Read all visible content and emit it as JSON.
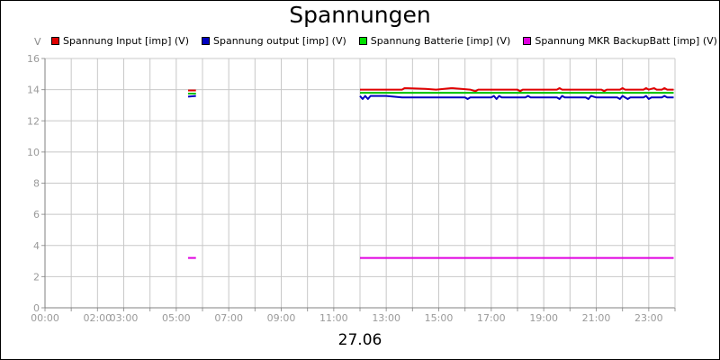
{
  "chart_data": {
    "type": "line",
    "title": "Spannungen",
    "ylabel": "V",
    "xlabel": "27.06",
    "ylim": [
      0,
      16
    ],
    "xlim": [
      0,
      24
    ],
    "grid": true,
    "legend_position": "top",
    "y_ticks": [
      0,
      2,
      4,
      6,
      8,
      10,
      12,
      14,
      16
    ],
    "x_ticks": [
      {
        "label": "00:00",
        "hour": 0
      },
      {
        "label": "02:00",
        "hour": 2
      },
      {
        "label": "03:00",
        "hour": 3
      },
      {
        "label": "05:00",
        "hour": 5
      },
      {
        "label": "07:00",
        "hour": 7
      },
      {
        "label": "09:00",
        "hour": 9
      },
      {
        "label": "11:00",
        "hour": 11
      },
      {
        "label": "13:00",
        "hour": 13
      },
      {
        "label": "15:00",
        "hour": 15
      },
      {
        "label": "17:00",
        "hour": 17
      },
      {
        "label": "19:00",
        "hour": 19
      },
      {
        "label": "21:00",
        "hour": 21
      },
      {
        "label": "23:00",
        "hour": 23
      }
    ],
    "series": [
      {
        "name": "Spannung Input [imp] (V)",
        "color": "#e00000",
        "segments": [
          [
            [
              5.45,
              13.95
            ],
            [
              5.75,
              13.95
            ]
          ],
          [
            [
              12.0,
              14.0
            ],
            [
              13.6,
              14.0
            ],
            [
              13.7,
              14.1
            ],
            [
              14.5,
              14.05
            ],
            [
              14.9,
              14.0
            ],
            [
              15.5,
              14.1
            ],
            [
              16.2,
              14.0
            ],
            [
              16.4,
              13.9
            ],
            [
              16.5,
              14.0
            ],
            [
              18.0,
              14.0
            ],
            [
              18.1,
              13.9
            ],
            [
              18.2,
              14.0
            ],
            [
              19.5,
              14.0
            ],
            [
              19.6,
              14.1
            ],
            [
              19.7,
              14.0
            ],
            [
              21.2,
              14.0
            ],
            [
              21.3,
              13.9
            ],
            [
              21.4,
              14.0
            ],
            [
              21.9,
              14.0
            ],
            [
              22.0,
              14.1
            ],
            [
              22.1,
              14.0
            ],
            [
              22.8,
              14.0
            ],
            [
              22.9,
              14.1
            ],
            [
              23.0,
              14.0
            ],
            [
              23.2,
              14.1
            ],
            [
              23.3,
              14.0
            ],
            [
              23.5,
              14.0
            ],
            [
              23.6,
              14.1
            ],
            [
              23.7,
              14.0
            ],
            [
              23.95,
              14.0
            ]
          ]
        ]
      },
      {
        "name": "Spannung output [imp] (V)",
        "color": "#0000c0",
        "segments": [
          [
            [
              5.45,
              13.55
            ],
            [
              5.75,
              13.6
            ]
          ],
          [
            [
              12.0,
              13.6
            ],
            [
              12.1,
              13.4
            ],
            [
              12.2,
              13.6
            ],
            [
              12.3,
              13.4
            ],
            [
              12.4,
              13.6
            ],
            [
              13.0,
              13.6
            ],
            [
              13.6,
              13.5
            ],
            [
              16.0,
              13.5
            ],
            [
              16.1,
              13.4
            ],
            [
              16.2,
              13.5
            ],
            [
              17.0,
              13.5
            ],
            [
              17.1,
              13.6
            ],
            [
              17.2,
              13.4
            ],
            [
              17.3,
              13.6
            ],
            [
              17.4,
              13.5
            ],
            [
              18.3,
              13.5
            ],
            [
              18.4,
              13.6
            ],
            [
              18.5,
              13.5
            ],
            [
              19.5,
              13.5
            ],
            [
              19.6,
              13.4
            ],
            [
              19.7,
              13.6
            ],
            [
              19.8,
              13.5
            ],
            [
              20.6,
              13.5
            ],
            [
              20.7,
              13.4
            ],
            [
              20.8,
              13.6
            ],
            [
              21.0,
              13.5
            ],
            [
              21.8,
              13.5
            ],
            [
              21.9,
              13.4
            ],
            [
              22.0,
              13.6
            ],
            [
              22.2,
              13.4
            ],
            [
              22.3,
              13.5
            ],
            [
              22.8,
              13.5
            ],
            [
              22.9,
              13.6
            ],
            [
              23.0,
              13.4
            ],
            [
              23.1,
              13.5
            ],
            [
              23.5,
              13.5
            ],
            [
              23.6,
              13.6
            ],
            [
              23.7,
              13.5
            ],
            [
              23.95,
              13.5
            ]
          ]
        ]
      },
      {
        "name": "Spannung Batterie [imp] (V)",
        "color": "#00c000",
        "segments": [
          [
            [
              5.45,
              13.75
            ],
            [
              5.75,
              13.75
            ]
          ],
          [
            [
              12.0,
              13.8
            ],
            [
              23.95,
              13.8
            ]
          ]
        ]
      },
      {
        "name": "Spannung MKR BackupBatt [imp] (V)",
        "color": "#e000e0",
        "segments": [
          [
            [
              5.45,
              3.2
            ],
            [
              5.75,
              3.2
            ]
          ],
          [
            [
              12.0,
              3.2
            ],
            [
              23.95,
              3.2
            ]
          ]
        ]
      }
    ]
  }
}
